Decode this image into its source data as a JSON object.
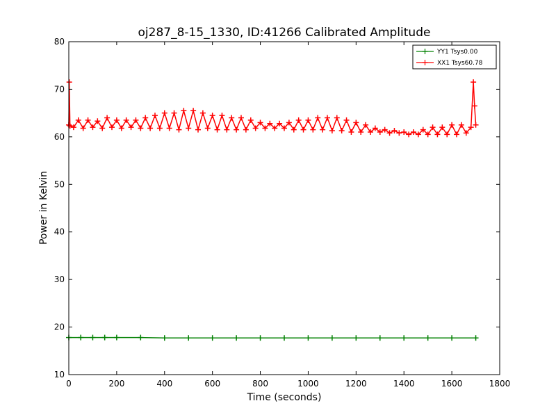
{
  "chart_data": {
    "type": "line",
    "title": "oj287_8-15_1330, ID:41266 Calibrated Amplitude",
    "xlabel": "Time (seconds)",
    "ylabel": "Power in Kelvin",
    "xlim": [
      0,
      1800
    ],
    "ylim": [
      10,
      80
    ],
    "xticks": [
      "0",
      "200",
      "400",
      "600",
      "800",
      "1000",
      "1200",
      "1400",
      "1600",
      "1800"
    ],
    "yticks": [
      "10",
      "20",
      "30",
      "40",
      "50",
      "60",
      "70",
      "80"
    ],
    "grid": false,
    "legend_position": "top-right",
    "marker": "+",
    "series": [
      {
        "name": "YY1 Tsys0.00",
        "color": "#008000",
        "x": [
          0,
          50,
          100,
          150,
          200,
          300,
          400,
          500,
          600,
          700,
          800,
          900,
          1000,
          1100,
          1200,
          1300,
          1400,
          1500,
          1600,
          1700
        ],
        "y": [
          17.8,
          17.8,
          17.8,
          17.8,
          17.8,
          17.8,
          17.7,
          17.7,
          17.7,
          17.7,
          17.7,
          17.7,
          17.7,
          17.7,
          17.7,
          17.7,
          17.7,
          17.7,
          17.7,
          17.7
        ]
      },
      {
        "name": "XX1 Tsys60.78",
        "color": "#ff0000",
        "x": [
          0,
          2,
          5,
          20,
          40,
          60,
          80,
          100,
          120,
          140,
          160,
          180,
          200,
          220,
          240,
          260,
          280,
          300,
          320,
          340,
          360,
          380,
          400,
          420,
          440,
          460,
          480,
          500,
          520,
          540,
          560,
          580,
          600,
          620,
          640,
          660,
          680,
          700,
          720,
          740,
          760,
          780,
          800,
          820,
          840,
          860,
          880,
          900,
          920,
          940,
          960,
          980,
          1000,
          1020,
          1040,
          1060,
          1080,
          1100,
          1120,
          1140,
          1160,
          1180,
          1200,
          1220,
          1240,
          1260,
          1280,
          1300,
          1320,
          1340,
          1360,
          1380,
          1400,
          1420,
          1440,
          1460,
          1480,
          1500,
          1520,
          1540,
          1560,
          1580,
          1600,
          1620,
          1640,
          1660,
          1680,
          1690,
          1695,
          1700
        ],
        "y": [
          62.5,
          71.5,
          62.3,
          62.0,
          63.5,
          61.8,
          63.5,
          62.0,
          63.3,
          61.8,
          64.0,
          62.0,
          63.5,
          61.8,
          63.5,
          62.0,
          63.5,
          61.8,
          64.0,
          61.8,
          64.5,
          61.8,
          65.0,
          61.8,
          65.0,
          61.5,
          65.5,
          61.8,
          65.5,
          61.5,
          65.0,
          61.8,
          64.5,
          61.5,
          64.5,
          61.5,
          64.0,
          61.5,
          64.0,
          61.5,
          63.5,
          61.8,
          63.0,
          61.8,
          62.8,
          61.8,
          62.8,
          61.8,
          63.0,
          61.5,
          63.5,
          61.5,
          63.5,
          61.5,
          64.0,
          61.5,
          64.0,
          61.3,
          64.0,
          61.3,
          63.5,
          61.0,
          63.0,
          61.0,
          62.5,
          61.0,
          61.8,
          61.0,
          61.5,
          60.8,
          61.3,
          60.8,
          61.0,
          60.5,
          61.0,
          60.5,
          61.5,
          60.5,
          62.0,
          60.5,
          62.0,
          60.5,
          62.5,
          60.5,
          62.5,
          60.8,
          62.0,
          71.5,
          66.5,
          62.5
        ]
      }
    ]
  }
}
